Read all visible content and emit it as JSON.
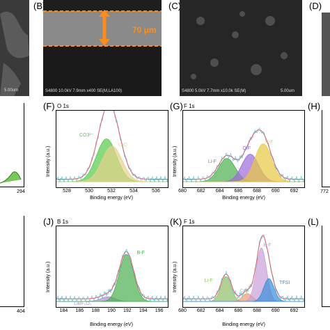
{
  "panels": {
    "B": {
      "letter": "(B)",
      "caption": "S4800 10.0kV 7.9mm x400 SE(M,LA100)",
      "thickness": "70 μm"
    },
    "C": {
      "letter": "(C)",
      "caption": "S4800 5.0kV 7.7mm x10.0k SE(M)",
      "scale": "5.00um"
    },
    "D": {
      "letter": "(D)"
    },
    "A": {
      "scale": "5.00um"
    },
    "E": {
      "tick": "294"
    },
    "F": {
      "letter": "(F)",
      "title": "O 1s",
      "ylabel": "Intensity (a.u.)",
      "xlabel": "Binding energy (eV)",
      "peaks": [
        "CO3²⁻",
        "C-O"
      ]
    },
    "G": {
      "letter": "(G)",
      "title": "F 1s",
      "ylabel": "Intensity (a.u.)",
      "xlabel": "Binding energy (eV)",
      "peaks": [
        "Li-F",
        "C-F",
        "P-F"
      ]
    },
    "H": {
      "letter": "(H)",
      "tick": "772"
    },
    "I": {
      "tick": "404"
    },
    "J": {
      "letter": "(J)",
      "title": "B 1s",
      "ylabel": "Intensity (a.u.)",
      "xlabel": "Binding energy (eV)",
      "peaks": [
        "LiBF₂O₂",
        "B-F"
      ]
    },
    "K": {
      "letter": "(K)",
      "title": "F 1s",
      "ylabel": "Intensity (a.u.)",
      "xlabel": "Binding energy (eV)",
      "peaks": [
        "Li-F",
        "C-F",
        "B-F",
        "TFSI"
      ]
    },
    "L": {
      "letter": "(L)"
    }
  },
  "chart_data": [
    {
      "type": "area",
      "panel": "F",
      "title": "O 1s",
      "xlabel": "Binding energy (eV)",
      "ylabel": "Intensity (a.u.)",
      "xlim": [
        527,
        537
      ],
      "xticks": [
        528,
        530,
        532,
        534,
        536
      ],
      "series": [
        {
          "name": "CO3²⁻",
          "center": 531.5,
          "height": 0.7,
          "color": "#55c94a"
        },
        {
          "name": "C-O",
          "center": 532.0,
          "height": 0.58,
          "color": "#e6d28a"
        }
      ]
    },
    {
      "type": "area",
      "panel": "G",
      "title": "F 1s",
      "xlabel": "Binding energy (eV)",
      "ylabel": "Intensity (a.u.)",
      "xlim": [
        680,
        693
      ],
      "xticks": [
        680,
        682,
        684,
        686,
        688,
        690,
        692
      ],
      "series": [
        {
          "name": "Li-F",
          "center": 684.7,
          "height": 0.38,
          "color": "#4caf50"
        },
        {
          "name": "C-F",
          "center": 687.2,
          "height": 0.45,
          "color": "#9c6ad8"
        },
        {
          "name": "P-F",
          "center": 688.6,
          "height": 0.62,
          "color": "#e8c840"
        }
      ]
    },
    {
      "type": "area",
      "panel": "J",
      "title": "B 1s",
      "xlabel": "Binding energy (eV)",
      "ylabel": "Intensity (a.u.)",
      "xlim": [
        183,
        197
      ],
      "xticks": [
        184,
        186,
        188,
        190,
        192,
        194,
        196
      ],
      "series": [
        {
          "name": "LiBF₂O₂",
          "center": 189.5,
          "height": 0.07,
          "color": "#b08ad8"
        },
        {
          "name": "B-F",
          "center": 191.8,
          "height": 0.72,
          "color": "#4caf50"
        }
      ]
    },
    {
      "type": "area",
      "panel": "K",
      "title": "F 1s",
      "xlabel": "Binding energy (eV)",
      "ylabel": "Intensity (a.u.)",
      "xlim": [
        680,
        693
      ],
      "xticks": [
        680,
        682,
        684,
        686,
        688,
        690,
        692
      ],
      "series": [
        {
          "name": "Li-F",
          "center": 684.6,
          "height": 0.38,
          "color": "#8fbf6a"
        },
        {
          "name": "C-F",
          "center": 686.9,
          "height": 0.12,
          "color": "#e8a070"
        },
        {
          "name": "B-F",
          "center": 688.4,
          "height": 0.82,
          "color": "#c8a0d8"
        },
        {
          "name": "TFSI",
          "center": 689.2,
          "height": 0.35,
          "color": "#3a8fd8"
        }
      ]
    }
  ]
}
